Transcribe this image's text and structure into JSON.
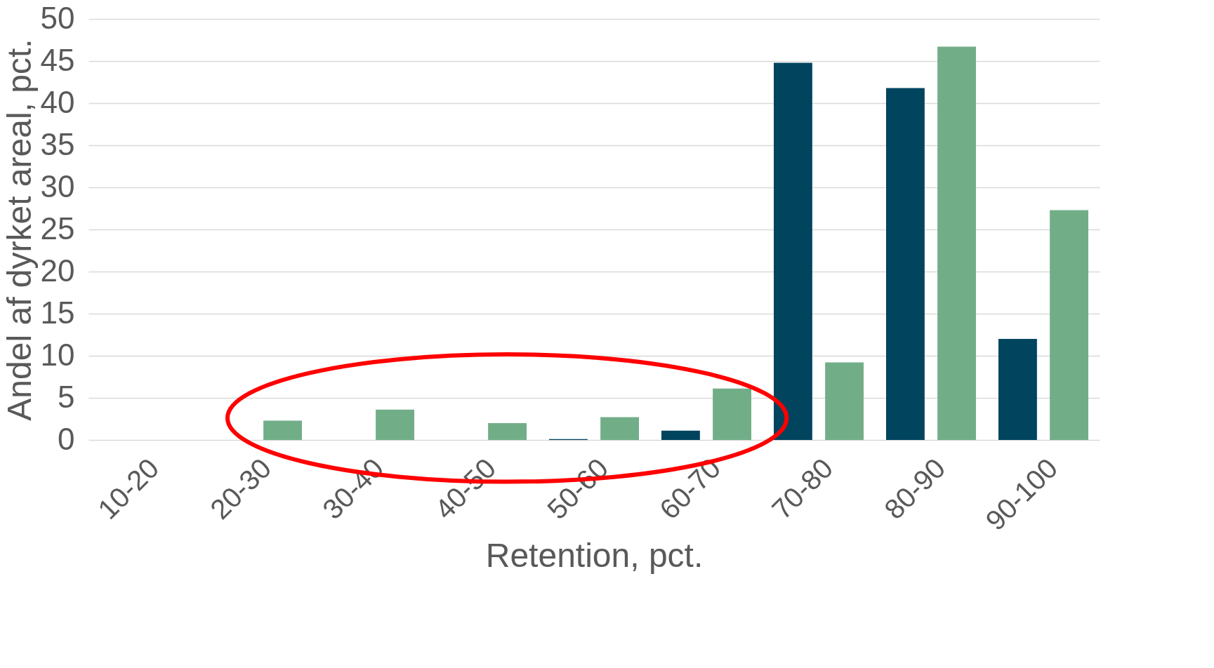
{
  "chart_data": {
    "type": "bar",
    "xlabel": "Retention, pct.",
    "ylabel": "Andel af dyrket areal, pct.",
    "categories": [
      "10-20",
      "20-30",
      "30-40",
      "40-50",
      "50-60",
      "60-70",
      "70-80",
      "80-90",
      "90-100"
    ],
    "series": [
      {
        "color": "#00445e",
        "values": [
          null,
          null,
          null,
          null,
          0.1,
          1.1,
          44.8,
          41.8,
          12.0
        ]
      },
      {
        "color": "#71ae88",
        "values": [
          null,
          2.3,
          3.6,
          2.0,
          2.7,
          6.1,
          9.2,
          46.7,
          27.3
        ]
      }
    ],
    "ylim": [
      0,
      50
    ],
    "yticks": [
      0,
      5,
      10,
      15,
      20,
      25,
      30,
      35,
      40,
      45,
      50
    ],
    "grid": "y",
    "legend": false
  }
}
